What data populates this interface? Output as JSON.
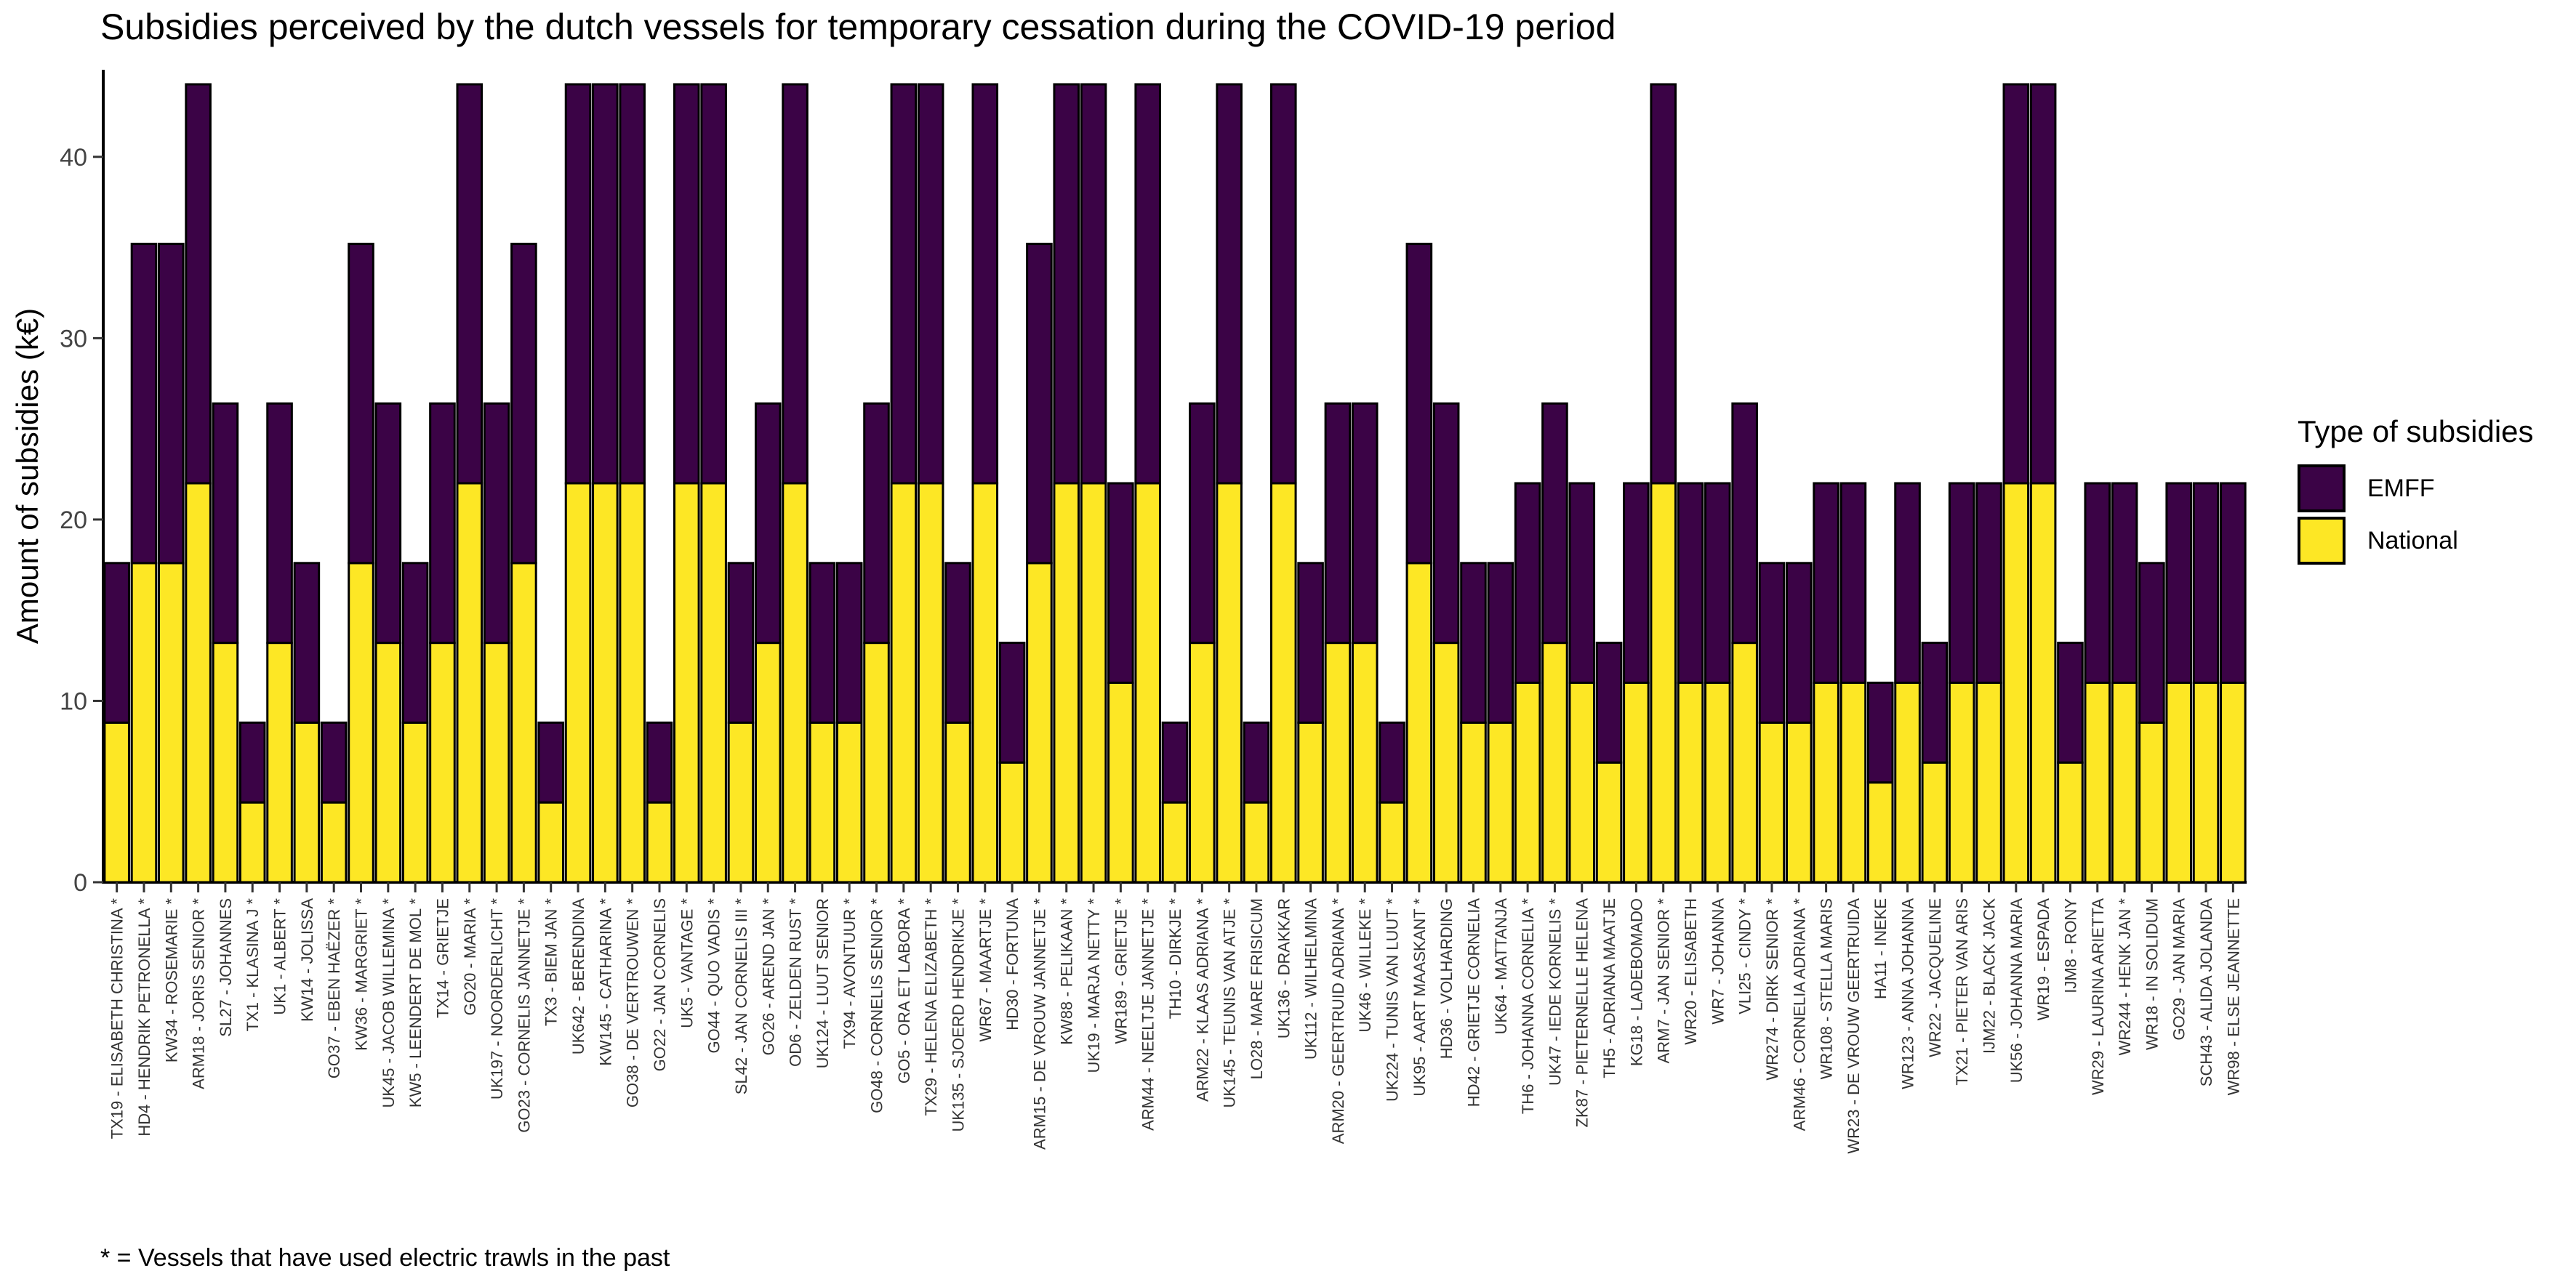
{
  "footnote": "* = Vessels that have used electric trawls in the past",
  "legend": {
    "title": "Type of subsidies",
    "items": [
      {
        "label": "EMFF",
        "color": "#3B0346"
      },
      {
        "label": "National",
        "color": "#FDE725"
      }
    ]
  },
  "chart_data": {
    "type": "bar",
    "stacked": true,
    "title": "Subsidies perceived by the dutch vessels for temporary cessation during the COVID-19 period",
    "xlabel": "",
    "ylabel": "Amount of subsidies (k€)",
    "ylim": [
      0,
      44
    ],
    "yticks": [
      0,
      10,
      20,
      30,
      40
    ],
    "grid": false,
    "legend_position": "right",
    "categories": [
      "TX19  -  ELISABETH CHRISTINA  *",
      "HD4  -  HENDRIK PETRONELLA  *",
      "KW34  -  ROSEMARIE  *",
      "ARM18  -  JORIS SENIOR  *",
      "SL27  -  JOHANNES",
      "TX1  -  KLASINA J  *",
      "UK1  -  ALBERT  *",
      "KW14  -  JOLISSA",
      "GO37  -  EBEN HAËZER  *",
      "KW36  -  MARGRIET  *",
      "UK45  -  JACOB WILLEMINA  *",
      "KW5  -  LEENDERT DE MOL  *",
      "TX14  -  GRIETJE",
      "GO20  -  MARIA  *",
      "UK197  -  NOORDERLICHT  *",
      "GO23  -  CORNELIS JANNETJE  *",
      "TX3  -  BIEM JAN  *",
      "UK642  -  BERENDINA",
      "KW145  -  CATHARINA  *",
      "GO38  -  DE VERTROUWEN  *",
      "GO22  -  JAN CORNELIS",
      "UK5  -  VANTAGE  *",
      "GO44  -  QUO VADIS  *",
      "SL42  -  JAN CORNELIS III  *",
      "GO26  -  AREND JAN  *",
      "OD6  -  ZELDEN RUST  *",
      "UK124  -  LUUT SENIOR",
      "TX94  -  AVONTUUR  *",
      "GO48  -  CORNELIS SENIOR  *",
      "GO5  -  ORA ET LABORA  *",
      "TX29  -  HELENA ELIZABETH  *",
      "UK135  -  SJOERD HENDRIKJE  *",
      "WR67  -  MAARTJE  *",
      "HD30  -  FORTUNA",
      "ARM15  -  DE VROUW JANNETJE  *",
      "KW88  -  PELIKAAN  *",
      "UK19  -  MARJA NETTY  *",
      "WR189  -  GRIETJE  *",
      "ARM44  -  NEELTJE JANNETJE  *",
      "TH10  -  DIRKJE  *",
      "ARM22  -  KLAAS ADRIANA  *",
      "UK145  -  TEUNIS VAN ATJE  *",
      "LO28  -  MARE FRISICUM",
      "UK136  -  DRAKKAR",
      "UK112  -  WILHELMINA",
      "ARM20  -  GEERTRUID ADRIANA  *",
      "UK46  -  WILLEKE  *",
      "UK224  -  TUNIS VAN LUUT  *",
      "UK95  -  AART MAASKANT  *",
      "HD36  -  VOLHARDING",
      "HD42  -  GRIETJE CORNELIA",
      "UK64  -  MATTANJA",
      "TH6  -  JOHANNA CORNELIA  *",
      "UK47  -  IEDE KORNELIS  *",
      "ZK87  -  PIETERNELLE HELENA",
      "TH5  -  ADRIANA MAATJE",
      "KG18  -  LADEBOMADO",
      "ARM7  -  JAN SENIOR  *",
      "WR20  -  ELISABETH",
      "WR7  -  JOHANNA",
      "VLI25  -  CINDY  *",
      "WR274  -  DIRK SENIOR  *",
      "ARM46  -  CORNELIA ADRIANA  *",
      "WR108  -  STELLA MARIS",
      "WR23  -  DE VROUW GEERTRUIDA",
      "HA11  -  INEKE",
      "WR123  -  ANNA JOHANNA",
      "WR22  -  JACQUELINE",
      "TX21  -  PIETER VAN ARIS",
      "IJM22  -  BLACK JACK",
      "UK56  -  JOHANNA MARIA",
      "WR19  -  ESPADA",
      "IJM8  -  RONY",
      "WR29  -  LAURINA ARIETTA",
      "WR244  -  HENK JAN  *",
      "WR18  -  IN SOLIDUM",
      "GO29  -  JAN MARIA",
      "SCH43  -  ALIDA JOLANDA",
      "WR98  -  ELSE JEANNETTE"
    ],
    "series": [
      {
        "name": "National",
        "color": "#FDE725",
        "values": [
          8.8,
          17.6,
          17.6,
          22,
          13.2,
          4.4,
          13.2,
          8.8,
          4.4,
          17.6,
          13.2,
          8.8,
          13.2,
          22,
          13.2,
          17.6,
          4.4,
          22,
          22,
          22,
          4.4,
          22,
          22,
          8.8,
          13.2,
          22,
          8.8,
          8.8,
          13.2,
          22,
          22,
          8.8,
          22,
          6.6,
          17.6,
          22,
          22,
          11,
          22,
          4.4,
          13.2,
          22,
          4.4,
          22,
          8.8,
          13.2,
          13.2,
          4.4,
          17.6,
          13.2,
          8.8,
          8.8,
          11,
          13.2,
          11,
          6.6,
          11,
          22,
          11,
          11,
          13.2,
          8.8,
          8.8,
          11,
          11,
          5.5,
          11,
          6.6,
          11,
          11,
          22,
          22,
          6.6,
          11,
          11,
          8.8,
          11,
          11,
          11
        ]
      },
      {
        "name": "EMFF",
        "color": "#3B0346",
        "values": [
          8.8,
          17.6,
          17.6,
          22,
          13.2,
          4.4,
          13.2,
          8.8,
          4.4,
          17.6,
          13.2,
          8.8,
          13.2,
          22,
          13.2,
          17.6,
          4.4,
          22,
          22,
          22,
          4.4,
          22,
          22,
          8.8,
          13.2,
          22,
          8.8,
          8.8,
          13.2,
          22,
          22,
          8.8,
          22,
          6.6,
          17.6,
          22,
          22,
          11,
          22,
          4.4,
          13.2,
          22,
          4.4,
          22,
          8.8,
          13.2,
          13.2,
          4.4,
          17.6,
          13.2,
          8.8,
          8.8,
          11,
          13.2,
          11,
          6.6,
          11,
          22,
          11,
          11,
          13.2,
          8.8,
          8.8,
          11,
          11,
          5.5,
          11,
          6.6,
          11,
          11,
          22,
          22,
          6.6,
          11,
          11,
          8.8,
          11,
          11,
          11
        ]
      }
    ]
  }
}
